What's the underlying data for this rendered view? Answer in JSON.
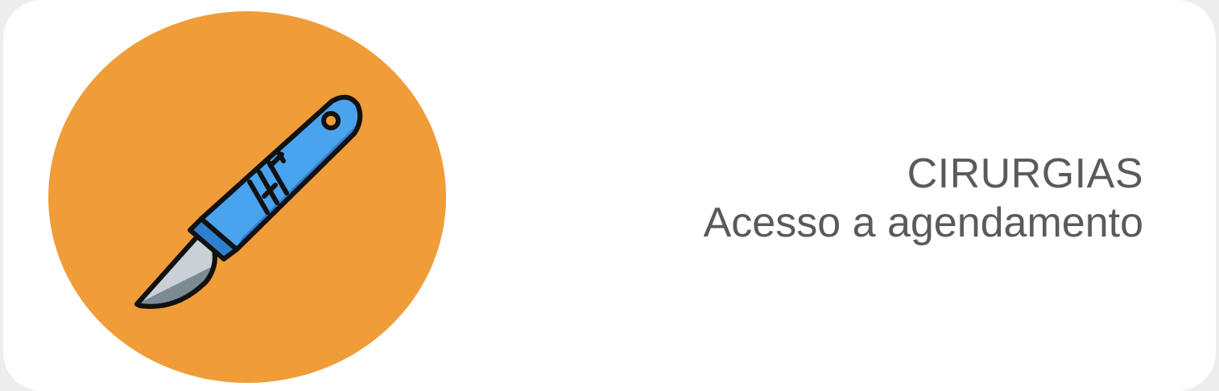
{
  "card": {
    "title": "CIRURGIAS",
    "subtitle": "Acesso a agendamento",
    "icon": "scalpel-icon",
    "colors": {
      "circle": "#f09c38",
      "handle": "#4aa3ee",
      "handle_dark": "#2f7fcf",
      "blade": "#c9d1d6",
      "blade_shadow": "#7c8a94",
      "text": "#5a5a5a",
      "card_bg": "#ffffff"
    }
  }
}
